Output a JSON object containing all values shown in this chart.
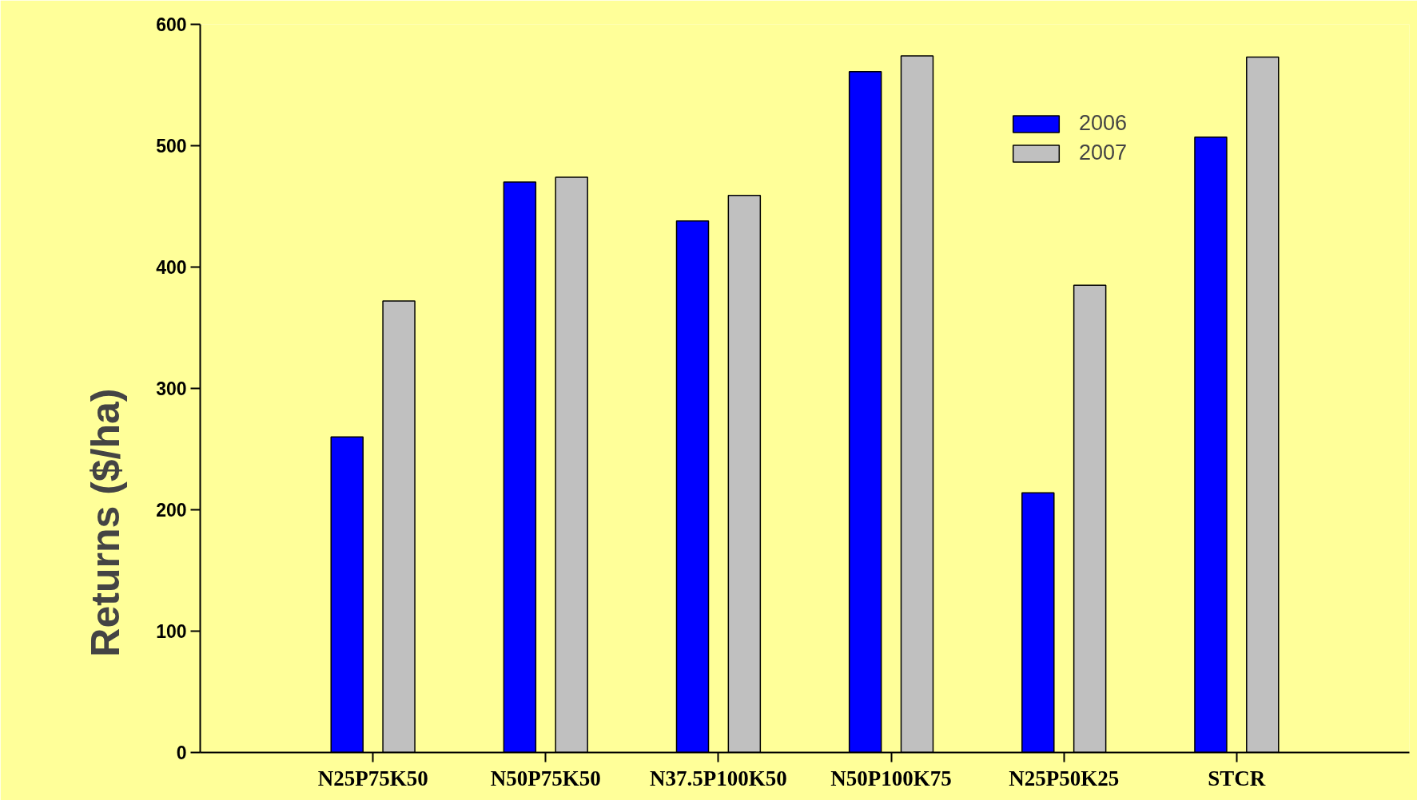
{
  "chart_data": {
    "type": "bar",
    "ylabel": "Returns ($/ha)",
    "categories": [
      "N25P75K50",
      "N50P75K50",
      "N37.5P100K50",
      "N50P100K75",
      "N25P50K25",
      "STCR"
    ],
    "series": [
      {
        "name": "2006",
        "color": "#0000ff",
        "values": [
          260,
          470,
          438,
          561,
          214,
          507
        ]
      },
      {
        "name": "2007",
        "color": "#c0c0c0",
        "values": [
          372,
          474,
          459,
          574,
          385,
          573
        ]
      }
    ],
    "ylim": [
      0,
      600
    ],
    "yticks": [
      0,
      100,
      200,
      300,
      400,
      500,
      600
    ],
    "grid": false,
    "legend": "top right"
  }
}
